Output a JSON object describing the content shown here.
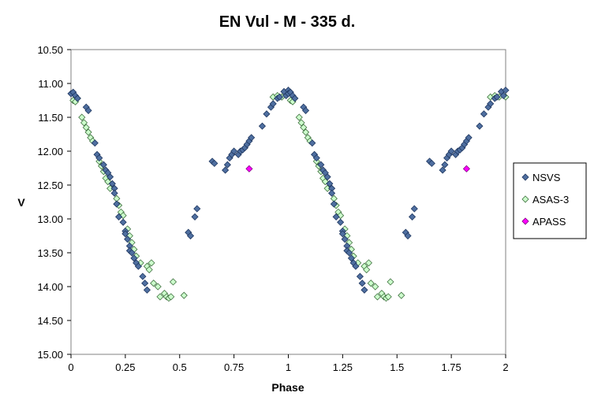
{
  "chart_data": {
    "type": "scatter",
    "title": "EN Vul - M - 335 d.",
    "xlabel": "Phase",
    "ylabel": "V",
    "xlim": [
      0,
      2
    ],
    "ylim": [
      10.5,
      15.0
    ],
    "y_inverted": true,
    "x_ticks": [
      "0",
      "0.25",
      "0.5",
      "0.75",
      "1",
      "1.25",
      "1.5",
      "1.75",
      "2"
    ],
    "y_ticks": [
      "10.50",
      "11.00",
      "11.50",
      "12.00",
      "12.50",
      "13.00",
      "13.50",
      "14.00",
      "14.50",
      "15.00"
    ],
    "grid": "none",
    "legend_placement": "right",
    "series": [
      {
        "name": "NSVS",
        "marker": "diamond",
        "color": "#4F6FA0",
        "edge": "#1F3760",
        "points": [
          [
            0.0,
            11.15
          ],
          [
            0.01,
            11.13
          ],
          [
            0.02,
            11.18
          ],
          [
            0.03,
            11.22
          ],
          [
            0.07,
            11.35
          ],
          [
            0.08,
            11.4
          ],
          [
            0.11,
            11.88
          ],
          [
            0.12,
            12.05
          ],
          [
            0.13,
            12.1
          ],
          [
            0.15,
            12.2
          ],
          [
            0.16,
            12.28
          ],
          [
            0.17,
            12.32
          ],
          [
            0.18,
            12.38
          ],
          [
            0.19,
            12.48
          ],
          [
            0.2,
            12.55
          ],
          [
            0.2,
            12.62
          ],
          [
            0.21,
            12.78
          ],
          [
            0.22,
            12.97
          ],
          [
            0.24,
            13.05
          ],
          [
            0.25,
            13.18
          ],
          [
            0.25,
            13.22
          ],
          [
            0.26,
            13.3
          ],
          [
            0.27,
            13.4
          ],
          [
            0.27,
            13.47
          ],
          [
            0.28,
            13.5
          ],
          [
            0.29,
            13.58
          ],
          [
            0.3,
            13.65
          ],
          [
            0.31,
            13.7
          ],
          [
            0.33,
            13.85
          ],
          [
            0.34,
            13.95
          ],
          [
            0.35,
            14.05
          ],
          [
            0.54,
            13.2
          ],
          [
            0.55,
            13.25
          ],
          [
            0.57,
            12.97
          ],
          [
            0.58,
            12.85
          ],
          [
            0.65,
            12.15
          ],
          [
            0.66,
            12.18
          ],
          [
            0.71,
            12.28
          ],
          [
            0.72,
            12.2
          ],
          [
            0.73,
            12.1
          ],
          [
            0.74,
            12.05
          ],
          [
            0.75,
            12.0
          ],
          [
            0.77,
            12.05
          ],
          [
            0.78,
            12.0
          ],
          [
            0.79,
            11.98
          ],
          [
            0.8,
            11.95
          ],
          [
            0.81,
            11.9
          ],
          [
            0.82,
            11.85
          ],
          [
            0.83,
            11.8
          ],
          [
            0.88,
            11.63
          ],
          [
            0.9,
            11.45
          ],
          [
            0.92,
            11.35
          ],
          [
            0.93,
            11.3
          ],
          [
            0.95,
            11.22
          ],
          [
            0.96,
            11.2
          ],
          [
            0.98,
            11.12
          ],
          [
            0.99,
            11.18
          ],
          [
            1.0,
            11.1
          ],
          [
            1.0,
            11.15
          ],
          [
            1.01,
            11.13
          ],
          [
            1.02,
            11.18
          ],
          [
            1.03,
            11.22
          ],
          [
            1.07,
            11.35
          ],
          [
            1.08,
            11.4
          ],
          [
            1.11,
            11.88
          ],
          [
            1.12,
            12.05
          ],
          [
            1.13,
            12.1
          ],
          [
            1.15,
            12.2
          ],
          [
            1.16,
            12.28
          ],
          [
            1.17,
            12.32
          ],
          [
            1.18,
            12.38
          ],
          [
            1.19,
            12.48
          ],
          [
            1.2,
            12.55
          ],
          [
            1.2,
            12.62
          ],
          [
            1.21,
            12.78
          ],
          [
            1.22,
            12.97
          ],
          [
            1.24,
            13.05
          ],
          [
            1.25,
            13.18
          ],
          [
            1.25,
            13.22
          ],
          [
            1.26,
            13.3
          ],
          [
            1.27,
            13.4
          ],
          [
            1.27,
            13.47
          ],
          [
            1.28,
            13.5
          ],
          [
            1.29,
            13.58
          ],
          [
            1.3,
            13.65
          ],
          [
            1.31,
            13.7
          ],
          [
            1.33,
            13.85
          ],
          [
            1.34,
            13.95
          ],
          [
            1.35,
            14.05
          ],
          [
            1.54,
            13.2
          ],
          [
            1.55,
            13.25
          ],
          [
            1.57,
            12.97
          ],
          [
            1.58,
            12.85
          ],
          [
            1.65,
            12.15
          ],
          [
            1.66,
            12.18
          ],
          [
            1.71,
            12.28
          ],
          [
            1.72,
            12.2
          ],
          [
            1.73,
            12.1
          ],
          [
            1.74,
            12.05
          ],
          [
            1.75,
            12.0
          ],
          [
            1.77,
            12.05
          ],
          [
            1.78,
            12.0
          ],
          [
            1.79,
            11.98
          ],
          [
            1.8,
            11.95
          ],
          [
            1.81,
            11.9
          ],
          [
            1.82,
            11.85
          ],
          [
            1.83,
            11.8
          ],
          [
            1.88,
            11.63
          ],
          [
            1.9,
            11.45
          ],
          [
            1.92,
            11.35
          ],
          [
            1.93,
            11.3
          ],
          [
            1.95,
            11.22
          ],
          [
            1.96,
            11.2
          ],
          [
            1.98,
            11.12
          ],
          [
            1.99,
            11.18
          ],
          [
            2.0,
            11.1
          ]
        ]
      },
      {
        "name": "ASAS-3",
        "marker": "diamond",
        "color": "#CCFFCC",
        "edge": "#3F6F3F",
        "points": [
          [
            0.01,
            11.25
          ],
          [
            0.02,
            11.27
          ],
          [
            0.03,
            11.22
          ],
          [
            0.05,
            11.5
          ],
          [
            0.06,
            11.58
          ],
          [
            0.07,
            11.65
          ],
          [
            0.08,
            11.72
          ],
          [
            0.09,
            11.8
          ],
          [
            0.1,
            11.85
          ],
          [
            0.13,
            12.15
          ],
          [
            0.14,
            12.22
          ],
          [
            0.15,
            12.3
          ],
          [
            0.16,
            12.4
          ],
          [
            0.17,
            12.45
          ],
          [
            0.18,
            12.55
          ],
          [
            0.21,
            12.7
          ],
          [
            0.22,
            12.8
          ],
          [
            0.23,
            12.9
          ],
          [
            0.24,
            12.95
          ],
          [
            0.26,
            13.15
          ],
          [
            0.27,
            13.25
          ],
          [
            0.28,
            13.35
          ],
          [
            0.29,
            13.45
          ],
          [
            0.3,
            13.55
          ],
          [
            0.32,
            13.65
          ],
          [
            0.35,
            13.7
          ],
          [
            0.36,
            13.75
          ],
          [
            0.37,
            13.65
          ],
          [
            0.38,
            13.95
          ],
          [
            0.4,
            14.0
          ],
          [
            0.41,
            14.15
          ],
          [
            0.43,
            14.1
          ],
          [
            0.44,
            14.15
          ],
          [
            0.45,
            14.17
          ],
          [
            0.46,
            14.15
          ],
          [
            0.47,
            13.93
          ],
          [
            0.52,
            14.13
          ],
          [
            0.93,
            11.2
          ],
          [
            0.95,
            11.18
          ],
          [
            0.97,
            11.2
          ],
          [
            1.01,
            11.25
          ],
          [
            1.02,
            11.27
          ],
          [
            1.03,
            11.22
          ],
          [
            1.05,
            11.5
          ],
          [
            1.06,
            11.58
          ],
          [
            1.07,
            11.65
          ],
          [
            1.08,
            11.72
          ],
          [
            1.09,
            11.8
          ],
          [
            1.1,
            11.85
          ],
          [
            1.13,
            12.15
          ],
          [
            1.14,
            12.22
          ],
          [
            1.15,
            12.3
          ],
          [
            1.16,
            12.4
          ],
          [
            1.17,
            12.45
          ],
          [
            1.18,
            12.55
          ],
          [
            1.21,
            12.7
          ],
          [
            1.22,
            12.8
          ],
          [
            1.23,
            12.9
          ],
          [
            1.24,
            12.95
          ],
          [
            1.26,
            13.15
          ],
          [
            1.27,
            13.25
          ],
          [
            1.28,
            13.35
          ],
          [
            1.29,
            13.45
          ],
          [
            1.3,
            13.55
          ],
          [
            1.32,
            13.65
          ],
          [
            1.35,
            13.7
          ],
          [
            1.36,
            13.75
          ],
          [
            1.37,
            13.65
          ],
          [
            1.38,
            13.95
          ],
          [
            1.4,
            14.0
          ],
          [
            1.41,
            14.15
          ],
          [
            1.43,
            14.1
          ],
          [
            1.44,
            14.15
          ],
          [
            1.45,
            14.17
          ],
          [
            1.46,
            14.15
          ],
          [
            1.47,
            13.93
          ],
          [
            1.52,
            14.13
          ],
          [
            1.93,
            11.2
          ],
          [
            1.95,
            11.18
          ],
          [
            1.97,
            11.2
          ],
          [
            2.0,
            11.2
          ]
        ]
      },
      {
        "name": "APASS",
        "marker": "diamond",
        "color": "#FF00FF",
        "edge": "#7F007F",
        "points": [
          [
            0.82,
            12.26
          ],
          [
            1.82,
            12.26
          ]
        ]
      }
    ]
  }
}
